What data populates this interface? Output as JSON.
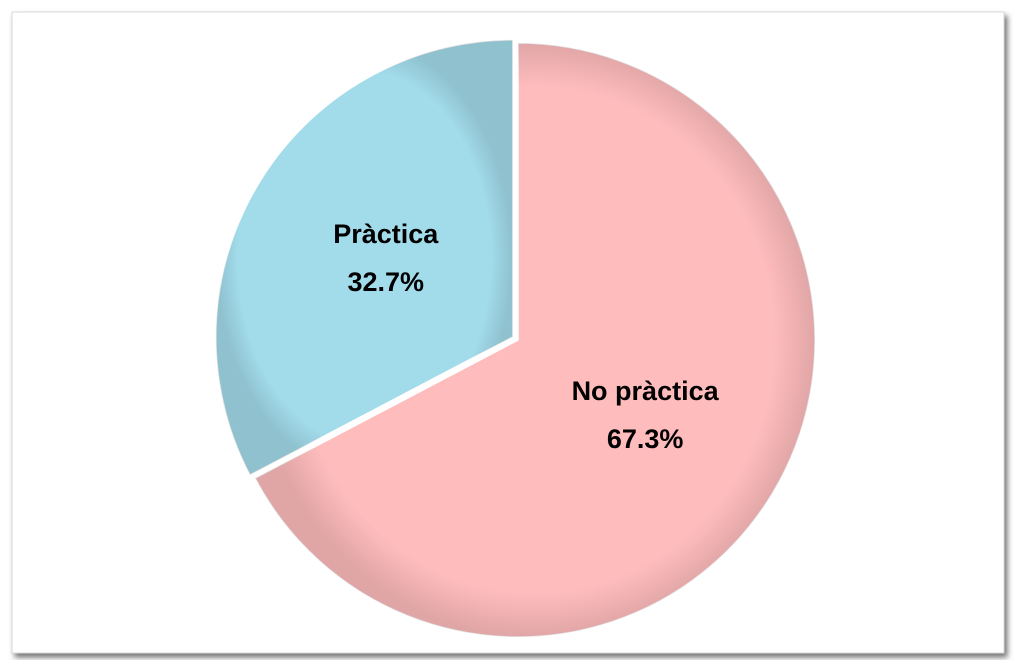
{
  "chart_data": {
    "type": "pie",
    "categories": [
      "No pràctica",
      "Pràctica"
    ],
    "values": [
      67.3,
      32.7
    ],
    "value_labels": [
      "67.3%",
      "32.7%"
    ],
    "colors": [
      "#ffbcbd",
      "#a2dbea"
    ]
  }
}
